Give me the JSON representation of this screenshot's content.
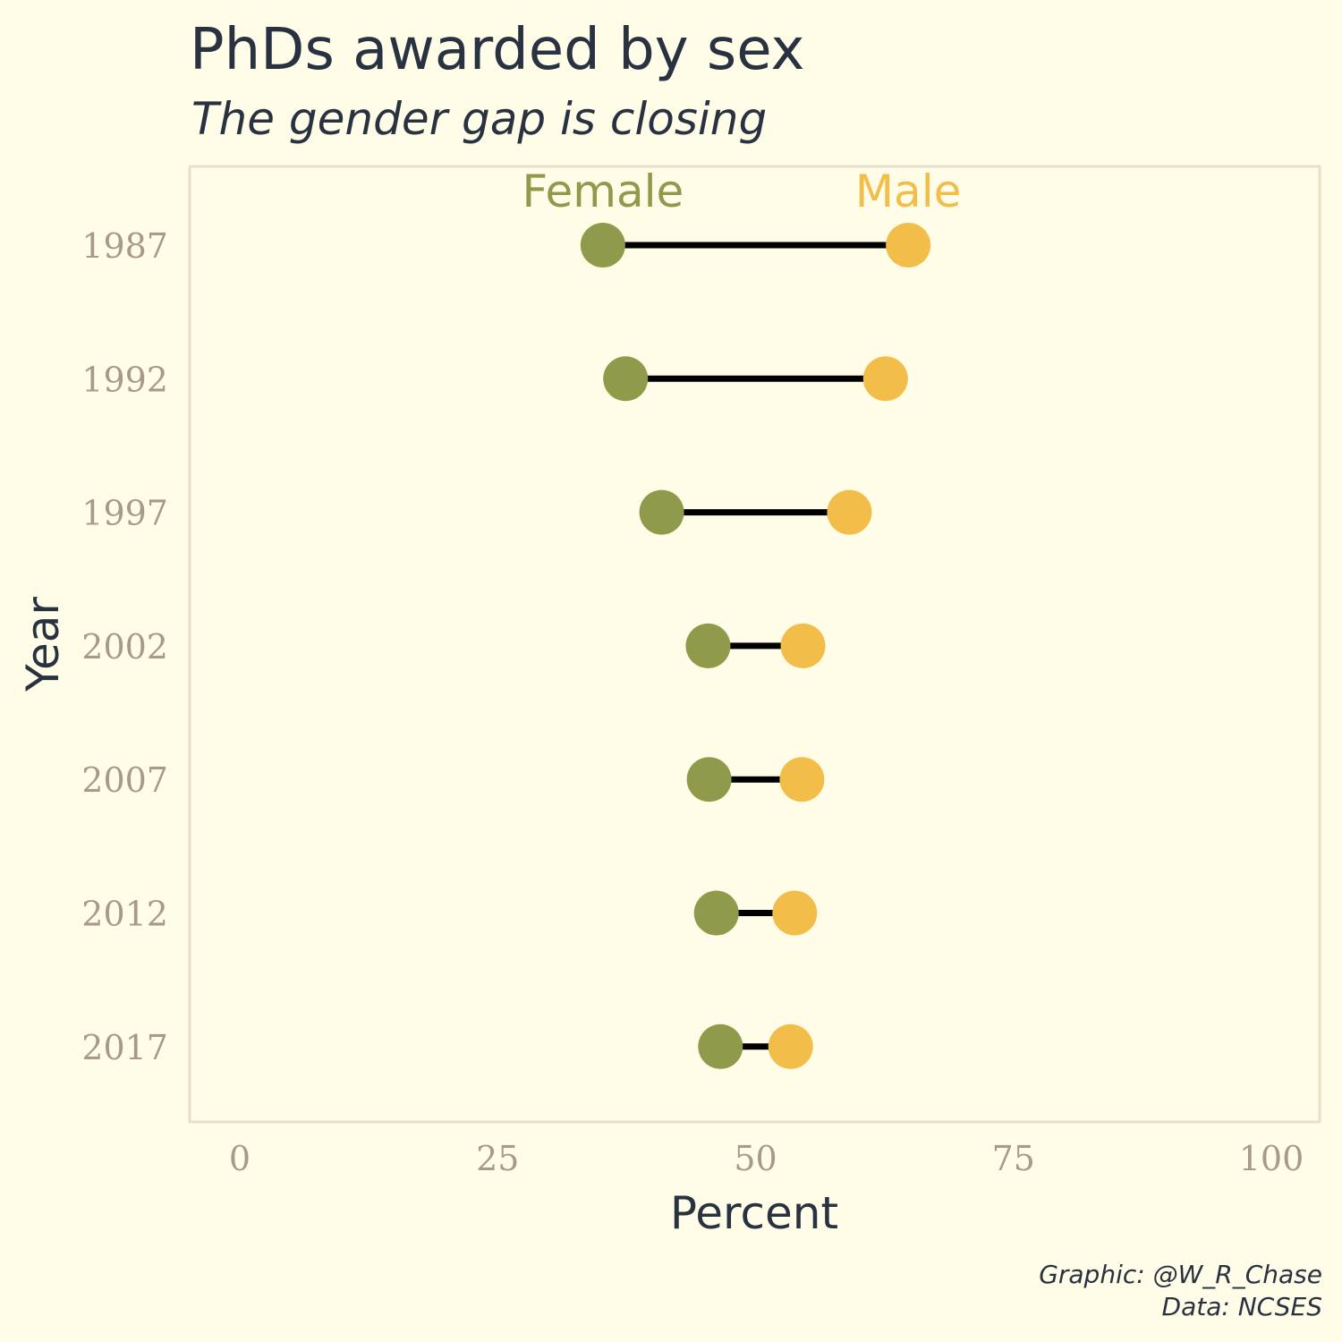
{
  "chart_data": {
    "type": "dumbbell",
    "title": "PhDs awarded by sex",
    "subtitle": "The gender gap is closing",
    "xlabel": "Percent",
    "ylabel": "Year",
    "xlim": [
      0,
      100
    ],
    "x_ticks": [
      0,
      25,
      50,
      75,
      100
    ],
    "x_tick_labels": [
      "0",
      "25",
      "50",
      "75",
      "100"
    ],
    "categories": [
      "1987",
      "1992",
      "1997",
      "2002",
      "2007",
      "2012",
      "2017"
    ],
    "series": [
      {
        "name": "Female",
        "color": "#8f9b4b",
        "values": [
          35.2,
          37.4,
          40.9,
          45.4,
          45.5,
          46.2,
          46.6
        ]
      },
      {
        "name": "Male",
        "color": "#f3bd4a",
        "values": [
          64.8,
          62.6,
          59.1,
          54.6,
          54.5,
          53.8,
          53.4
        ]
      }
    ],
    "legend_placement": "top, labels above 1987 points",
    "grid": false,
    "caption_line1": "Graphic: @W_R_Chase",
    "caption_line2": "Data: NCSES"
  },
  "colors": {
    "background": "#fffde8",
    "panel_border": "#eadfc5",
    "segment": "#000000",
    "tick_text": "#a89a85",
    "title_text": "#283240"
  }
}
